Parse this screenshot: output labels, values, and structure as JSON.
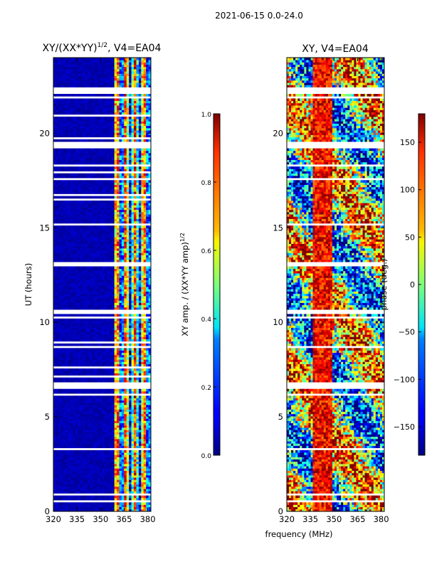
{
  "figure": {
    "suptitle": "2021-06-15 0.0-24.0",
    "shared_xlabel": "frequency (MHz)"
  },
  "chart_data": [
    {
      "type": "heatmap",
      "title_text": "XY/(XX*YY)",
      "title_exp": "1/2",
      "title_suffix": ", V4=EA04",
      "xlabel": "",
      "ylabel": "UT (hours)",
      "xlim": [
        320,
        382
      ],
      "ylim": [
        0,
        24
      ],
      "xticks": [
        320,
        335,
        350,
        365,
        380
      ],
      "yticks": [
        0,
        5,
        10,
        15,
        20
      ],
      "colormap": "jet",
      "value_pattern": "near-zero below ~359 MHz; bright striped columns 359-380 MHz",
      "flagged_bands_hours": [
        [
          0.5,
          0.55
        ],
        [
          0.8,
          1.0
        ],
        [
          1.4,
          1.45
        ],
        [
          3.3,
          3.4
        ],
        [
          3.55,
          3.6
        ],
        [
          3.7,
          3.75
        ],
        [
          5.7,
          5.75
        ],
        [
          6.1,
          6.3
        ],
        [
          6.5,
          6.8
        ],
        [
          7.1,
          7.15
        ],
        [
          7.6,
          7.65
        ],
        [
          8.7,
          8.75
        ],
        [
          8.9,
          8.95
        ],
        [
          9.6,
          9.65
        ],
        [
          10.2,
          10.3
        ],
        [
          10.5,
          10.65
        ],
        [
          10.9,
          10.95
        ],
        [
          12.55,
          12.65
        ],
        [
          13.0,
          13.2
        ],
        [
          14.4,
          14.45
        ],
        [
          15.1,
          15.2
        ],
        [
          15.8,
          15.85
        ],
        [
          16.45,
          16.5
        ],
        [
          16.7,
          16.75
        ],
        [
          17.5,
          17.6
        ],
        [
          17.9,
          17.95
        ],
        [
          18.2,
          18.3
        ],
        [
          19.2,
          19.5
        ],
        [
          19.7,
          19.75
        ],
        [
          20.5,
          20.55
        ],
        [
          20.9,
          21.0
        ],
        [
          21.3,
          21.35
        ],
        [
          21.55,
          21.6
        ],
        [
          21.9,
          22.0
        ],
        [
          22.1,
          22.4
        ]
      ],
      "colorbar": {
        "label_text": "XY amp. / (XX*YY amp)",
        "label_exp": "1/2",
        "range": [
          0.0,
          1.0
        ],
        "ticks": [
          "0.0",
          "0.2",
          "0.4",
          "0.6",
          "0.8",
          "1.0"
        ],
        "tick_values": [
          0.0,
          0.2,
          0.4,
          0.6,
          0.8,
          1.0
        ]
      }
    },
    {
      "type": "heatmap",
      "title": "XY, V4=EA04",
      "xlabel": "frequency (MHz)",
      "ylabel": "",
      "xlim": [
        320,
        382
      ],
      "ylim": [
        0,
        24
      ],
      "xticks": [
        320,
        335,
        350,
        365,
        380
      ],
      "yticks": [
        0,
        5,
        10,
        15,
        20
      ],
      "colormap": "jet",
      "value_pattern": "noisy phase in degrees spanning the full range",
      "flagged_bands_hours": [
        [
          0.5,
          0.55
        ],
        [
          0.8,
          1.0
        ],
        [
          1.4,
          1.45
        ],
        [
          3.3,
          3.4
        ],
        [
          3.55,
          3.6
        ],
        [
          6.1,
          6.3
        ],
        [
          6.5,
          6.8
        ],
        [
          8.7,
          8.75
        ],
        [
          10.2,
          10.3
        ],
        [
          10.5,
          10.65
        ],
        [
          13.0,
          13.2
        ],
        [
          15.1,
          15.2
        ],
        [
          17.5,
          17.6
        ],
        [
          18.2,
          18.3
        ],
        [
          19.2,
          19.5
        ],
        [
          20.5,
          20.55
        ],
        [
          21.9,
          22.0
        ],
        [
          22.1,
          22.4
        ]
      ],
      "colorbar": {
        "label": "phase (deg.)",
        "range": [
          -180,
          180
        ],
        "ticks": [
          "−150",
          "−100",
          "−50",
          "0",
          "50",
          "100",
          "150"
        ],
        "tick_values": [
          -150,
          -100,
          -50,
          0,
          50,
          100,
          150
        ]
      }
    }
  ]
}
